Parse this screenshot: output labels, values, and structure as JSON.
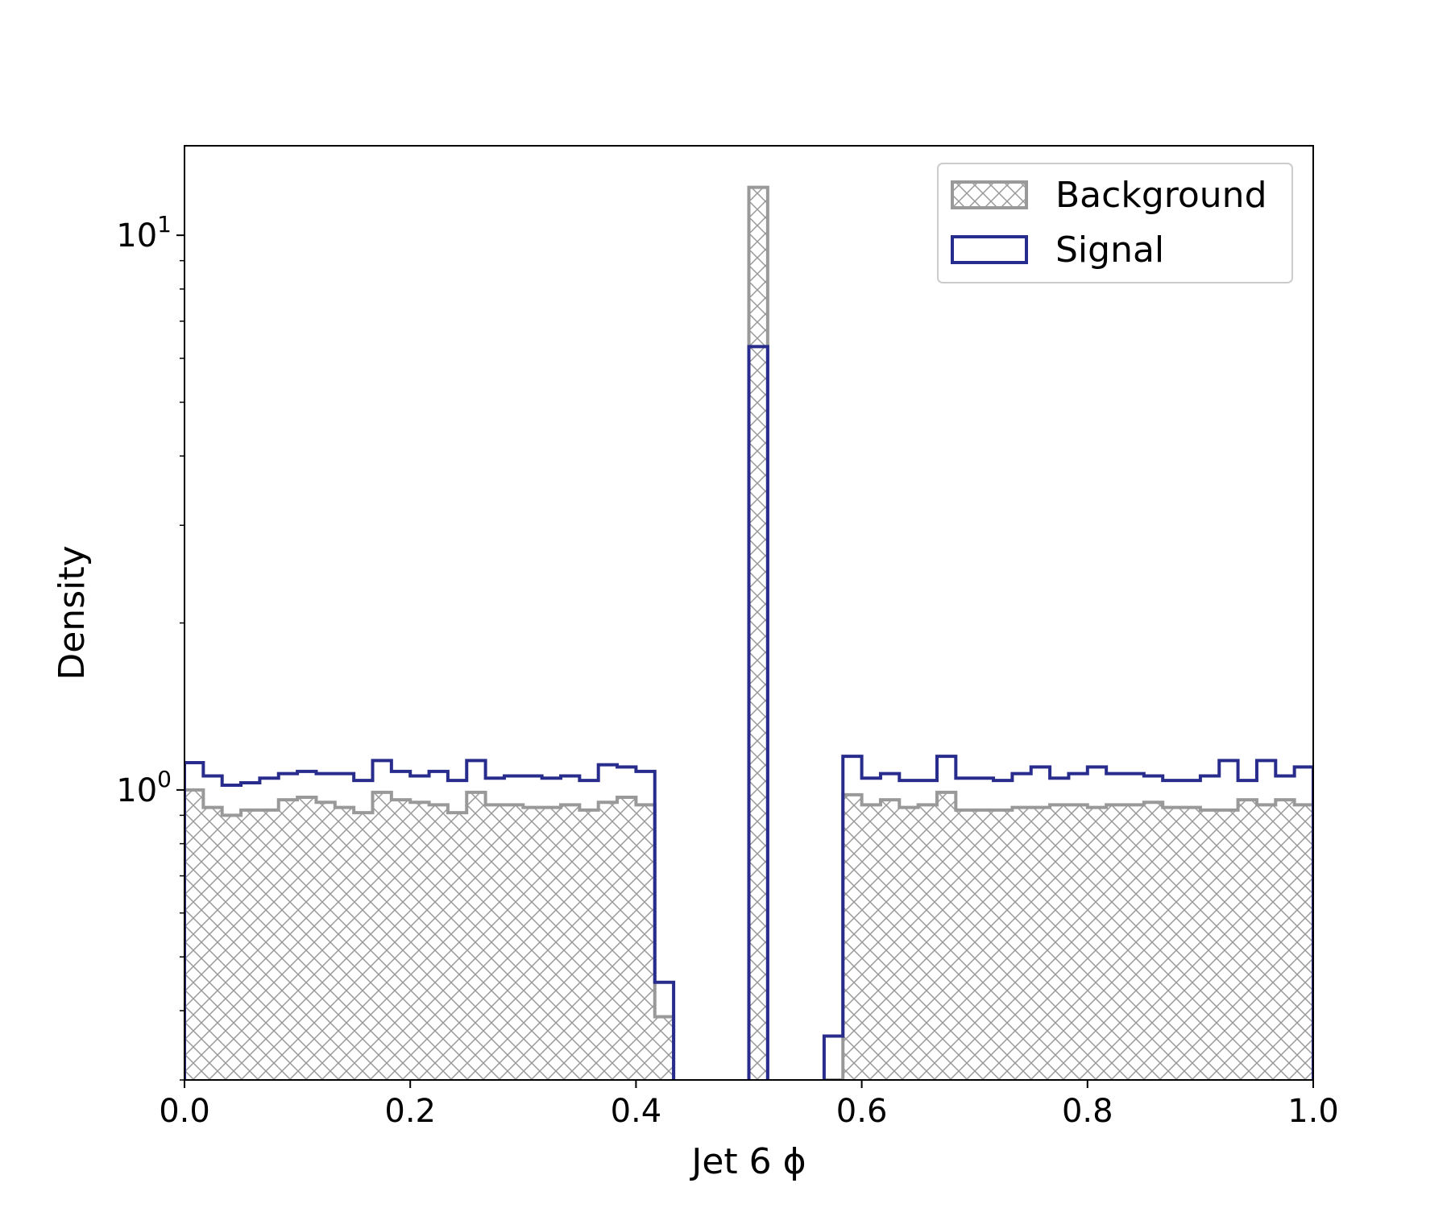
{
  "chart_data": {
    "type": "histogram",
    "xlabel": "Jet 6 ϕ",
    "ylabel": "Density",
    "xlim": [
      0.0,
      1.0
    ],
    "ylim": [
      0.3,
      14.5
    ],
    "yscale": "log",
    "grid": false,
    "legend_position": "top-right",
    "x_ticks": [
      "0.0",
      "0.2",
      "0.4",
      "0.6",
      "0.8",
      "1.0"
    ],
    "y_ticks": [
      {
        "value": 1,
        "base": "10",
        "exp": "0"
      },
      {
        "value": 10,
        "base": "10",
        "exp": "1"
      }
    ],
    "bin_edges": [
      0.0,
      0.01667,
      0.03333,
      0.05,
      0.06667,
      0.08333,
      0.1,
      0.11667,
      0.13333,
      0.15,
      0.16667,
      0.18333,
      0.2,
      0.21667,
      0.23333,
      0.25,
      0.26667,
      0.28333,
      0.3,
      0.31667,
      0.33333,
      0.35,
      0.36667,
      0.38333,
      0.4,
      0.41667,
      0.43333,
      0.45,
      0.46667,
      0.48333,
      0.5,
      0.51667,
      0.53333,
      0.55,
      0.56667,
      0.58333,
      0.6,
      0.61667,
      0.63333,
      0.65,
      0.66667,
      0.68333,
      0.7,
      0.71667,
      0.73333,
      0.75,
      0.76667,
      0.78333,
      0.8,
      0.81667,
      0.83333,
      0.85,
      0.86667,
      0.88333,
      0.9,
      0.91667,
      0.93333,
      0.95,
      0.96667,
      0.98333,
      1.0
    ],
    "series": [
      {
        "name": "Background",
        "style": "hatched",
        "color": "#999999",
        "values": [
          1.0,
          0.93,
          0.9,
          0.92,
          0.92,
          0.96,
          0.97,
          0.95,
          0.93,
          0.91,
          0.99,
          0.96,
          0.95,
          0.94,
          0.91,
          0.99,
          0.94,
          0.94,
          0.93,
          0.93,
          0.94,
          0.92,
          0.95,
          0.97,
          0.94,
          0.39,
          0,
          0,
          0,
          0,
          12.2,
          0,
          0,
          0,
          0.3,
          0.98,
          0.94,
          0.96,
          0.93,
          0.94,
          0.99,
          0.92,
          0.92,
          0.92,
          0.93,
          0.93,
          0.94,
          0.94,
          0.93,
          0.94,
          0.94,
          0.95,
          0.93,
          0.93,
          0.92,
          0.92,
          0.96,
          0.94,
          0.96,
          0.94
        ]
      },
      {
        "name": "Signal",
        "style": "step",
        "color": "#282c8c",
        "values": [
          1.12,
          1.06,
          1.02,
          1.03,
          1.05,
          1.07,
          1.08,
          1.07,
          1.07,
          1.04,
          1.13,
          1.08,
          1.06,
          1.08,
          1.04,
          1.13,
          1.05,
          1.06,
          1.06,
          1.05,
          1.06,
          1.04,
          1.11,
          1.1,
          1.08,
          0.45,
          0,
          0,
          0,
          0,
          6.3,
          0,
          0,
          0,
          0.36,
          1.15,
          1.05,
          1.07,
          1.04,
          1.04,
          1.15,
          1.05,
          1.05,
          1.04,
          1.07,
          1.1,
          1.05,
          1.07,
          1.1,
          1.07,
          1.07,
          1.06,
          1.04,
          1.04,
          1.06,
          1.13,
          1.04,
          1.13,
          1.06,
          1.1
        ]
      }
    ]
  }
}
